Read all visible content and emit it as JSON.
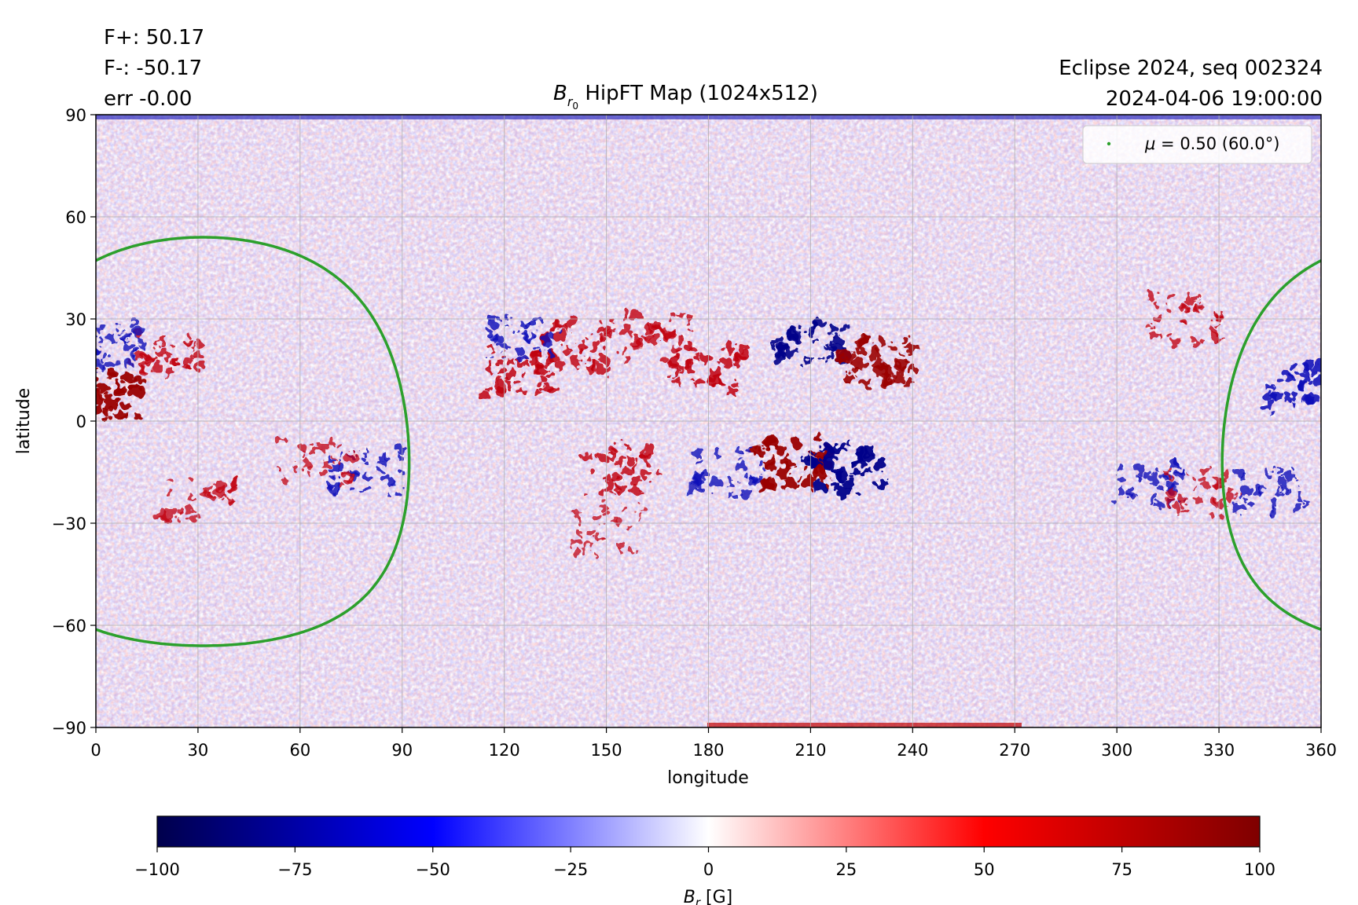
{
  "header": {
    "fplus": "F+: 50.17",
    "fminus": "F-: -50.17",
    "err": "err -0.00",
    "title_main": "HipFT Map (1024x512)",
    "title_symbol": "B",
    "title_sub": "r",
    "title_subsub": "0",
    "right_line1": "Eclipse 2024, seq 002324",
    "right_line2": "2024-04-06 19:00:00"
  },
  "legend": {
    "mu_symbol": "μ",
    "mu_text": " = 0.50 (60.0°)",
    "color": "#2ca02c"
  },
  "chart_data": {
    "type": "heatmap",
    "title": "B_r0 HipFT Map (1024x512)",
    "xlabel": "longitude",
    "ylabel": "latitude",
    "xlim": [
      0,
      360
    ],
    "ylim": [
      -90,
      90
    ],
    "xticks": [
      0,
      30,
      60,
      90,
      120,
      150,
      180,
      210,
      240,
      270,
      300,
      330,
      360
    ],
    "yticks": [
      90,
      60,
      30,
      0,
      -30,
      -60,
      -90
    ],
    "ytick_labels": [
      "90",
      "60",
      "30",
      "0",
      "−30",
      "−60",
      "−90"
    ],
    "grid": true,
    "legend_position": "top-right",
    "series": [
      {
        "name": "μ = 0.50 (60.0°)",
        "kind": "contour",
        "color": "#2ca02c",
        "center_lon": 31.5,
        "center_lat": -6.0,
        "radius_deg": 60.0
      }
    ],
    "regions": [
      {
        "lon": 20,
        "lat": 20,
        "polarity": "positive",
        "strength": 70
      },
      {
        "lon": 5,
        "lat": 22,
        "polarity": "negative",
        "strength": 70
      },
      {
        "lon": 2,
        "lat": 8,
        "polarity": "positive",
        "strength": 100
      },
      {
        "lon": 30,
        "lat": -22,
        "polarity": "positive",
        "strength": 60
      },
      {
        "lon": 80,
        "lat": -15,
        "polarity": "negative",
        "strength": 75
      },
      {
        "lon": 65,
        "lat": -12,
        "polarity": "positive",
        "strength": 60
      },
      {
        "lon": 140,
        "lat": 22,
        "polarity": "positive",
        "strength": 75
      },
      {
        "lon": 125,
        "lat": 15,
        "polarity": "positive",
        "strength": 80
      },
      {
        "lon": 125,
        "lat": 25,
        "polarity": "negative",
        "strength": 75
      },
      {
        "lon": 180,
        "lat": 15,
        "polarity": "positive",
        "strength": 80
      },
      {
        "lon": 165,
        "lat": 25,
        "polarity": "positive",
        "strength": 70
      },
      {
        "lon": 210,
        "lat": 22,
        "polarity": "negative",
        "strength": 90
      },
      {
        "lon": 230,
        "lat": 18,
        "polarity": "positive",
        "strength": 90
      },
      {
        "lon": 205,
        "lat": -12,
        "polarity": "positive",
        "strength": 100
      },
      {
        "lon": 220,
        "lat": -14,
        "polarity": "negative",
        "strength": 100
      },
      {
        "lon": 155,
        "lat": -14,
        "polarity": "positive",
        "strength": 75
      },
      {
        "lon": 185,
        "lat": -15,
        "polarity": "negative",
        "strength": 70
      },
      {
        "lon": 150,
        "lat": -32,
        "polarity": "positive",
        "strength": 55
      },
      {
        "lon": 320,
        "lat": 30,
        "polarity": "positive",
        "strength": 65
      },
      {
        "lon": 355,
        "lat": 10,
        "polarity": "negative",
        "strength": 85
      },
      {
        "lon": 345,
        "lat": -20,
        "polarity": "negative",
        "strength": 70
      },
      {
        "lon": 310,
        "lat": -18,
        "polarity": "negative",
        "strength": 70
      },
      {
        "lon": 325,
        "lat": -22,
        "polarity": "positive",
        "strength": 60
      }
    ],
    "colorbar": {
      "label_symbol": "B",
      "label_sub": "r",
      "label_unit": " [G]",
      "range": [
        -100,
        100
      ],
      "ticks": [
        -100,
        -75,
        -50,
        -25,
        0,
        25,
        50,
        75,
        100
      ],
      "tick_labels": [
        "−100",
        "−75",
        "−50",
        "−25",
        "0",
        "25",
        "50",
        "75",
        "100"
      ],
      "colormap": "seismic",
      "stops": [
        "#00004c",
        "#0000ff",
        "#ffffff",
        "#ff0000",
        "#7f0000"
      ]
    }
  }
}
